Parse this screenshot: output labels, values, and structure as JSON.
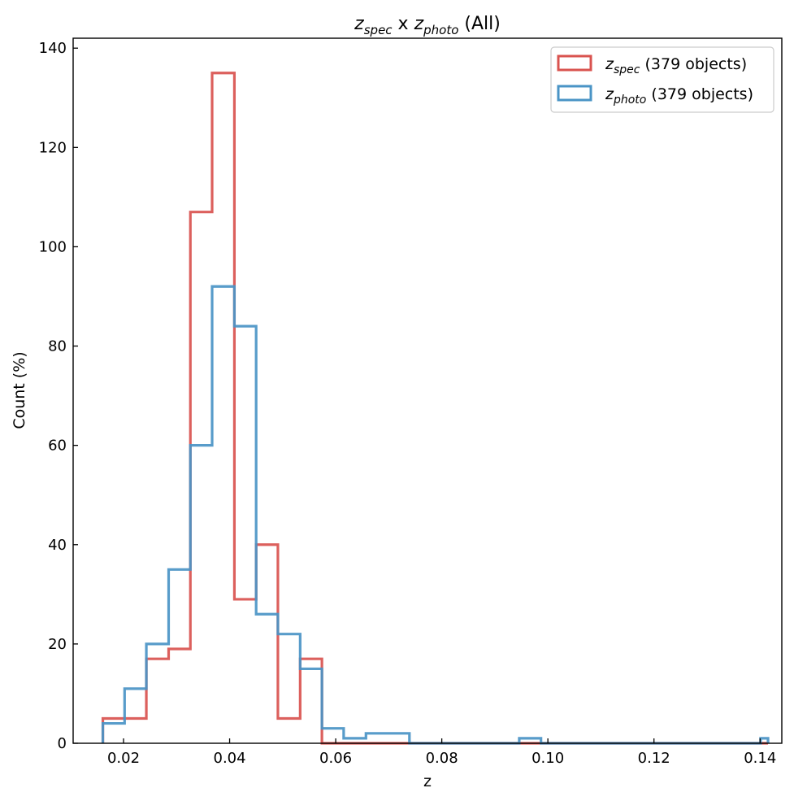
{
  "chart_data": {
    "type": "histogram",
    "title": {
      "a_symbol": "z",
      "a_sub": "spec",
      "connector": " x ",
      "b_symbol": "z",
      "b_sub": "photo",
      "suffix": " (All)"
    },
    "xlabel": "z",
    "ylabel": "Count (%)",
    "xlim": [
      0.0105,
      0.1441
    ],
    "ylim": [
      0,
      142
    ],
    "xticks": [
      0.02,
      0.04,
      0.06,
      0.08,
      0.1,
      0.12,
      0.14
    ],
    "xtick_labels": [
      "0.02",
      "0.04",
      "0.06",
      "0.08",
      "0.10",
      "0.12",
      "0.14"
    ],
    "yticks": [
      0,
      20,
      40,
      60,
      80,
      100,
      120,
      140
    ],
    "ytick_labels": [
      "0",
      "20",
      "40",
      "60",
      "80",
      "100",
      "120",
      "140"
    ],
    "grid": false,
    "legend_position": "top-right",
    "bin_edges": [
      0.0161,
      0.0202,
      0.0243,
      0.0285,
      0.0326,
      0.0367,
      0.0409,
      0.045,
      0.0491,
      0.0533,
      0.0574,
      0.0615,
      0.0657,
      0.0698,
      0.0739,
      0.0781,
      0.0822,
      0.0863,
      0.0905,
      0.0946,
      0.0987,
      0.1029,
      0.107,
      0.1111,
      0.1153,
      0.1194,
      0.1235,
      0.1277,
      0.1318,
      0.1359,
      0.1401,
      0.1415
    ],
    "series": [
      {
        "name": "spec",
        "legend": {
          "symbol": "z",
          "sub": "spec",
          "text": " (379 objects)"
        },
        "color": "#d9534f",
        "values": [
          5,
          5,
          17,
          19,
          107,
          135,
          29,
          40,
          5,
          17,
          0,
          0,
          0,
          0,
          0,
          0,
          0,
          0,
          0,
          0,
          0,
          0,
          0,
          0,
          0,
          0,
          0,
          0,
          0,
          0,
          0
        ]
      },
      {
        "name": "photo",
        "legend": {
          "symbol": "z",
          "sub": "photo",
          "text": " (379 objects)"
        },
        "color": "#4a94c6",
        "values": [
          4,
          11,
          20,
          35,
          60,
          92,
          84,
          26,
          22,
          15,
          3,
          1,
          2,
          2,
          0,
          0,
          0,
          0,
          0,
          1,
          0,
          0,
          0,
          0,
          0,
          0,
          0,
          0,
          0,
          0,
          1
        ]
      }
    ]
  }
}
